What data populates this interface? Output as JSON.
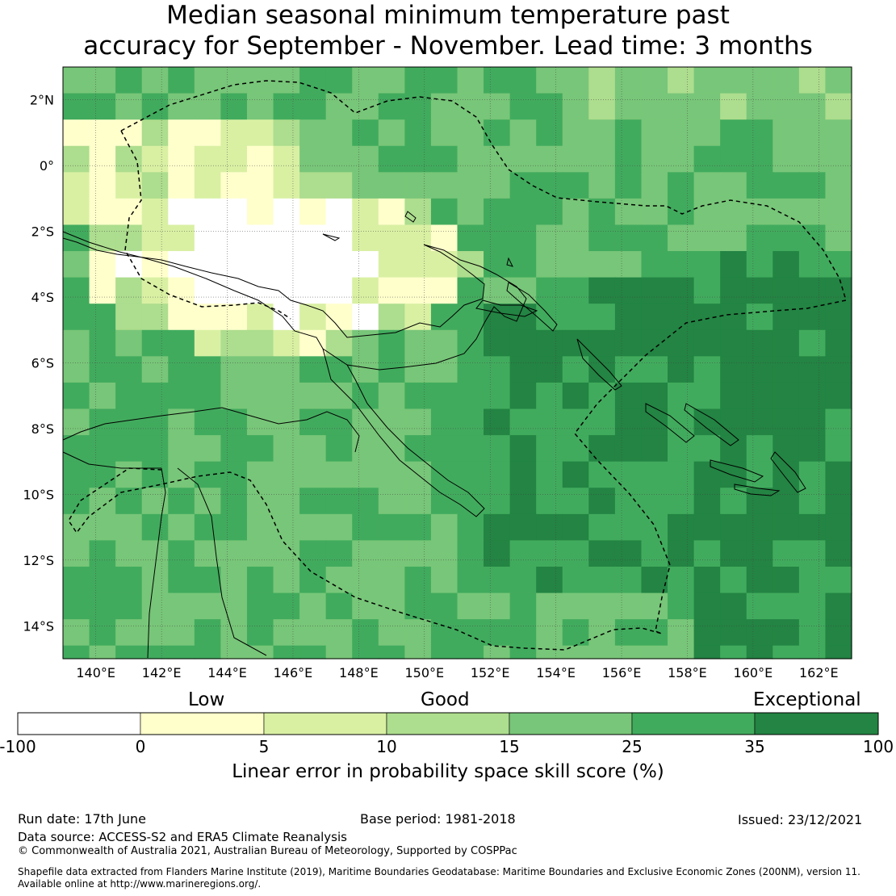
{
  "title": {
    "line1": "Median seasonal minimum temperature past",
    "line2": "accuracy for September - November. Lead time: 3 months"
  },
  "map": {
    "lon_labels": [
      "140°E",
      "142°E",
      "144°E",
      "146°E",
      "148°E",
      "150°E",
      "152°E",
      "154°E",
      "156°E",
      "158°E",
      "160°E",
      "162°E"
    ],
    "lat_labels": [
      "2°N",
      "0°",
      "2°S",
      "4°S",
      "6°S",
      "8°S",
      "10°S",
      "12°S",
      "14°S"
    ],
    "lon_range": [
      139,
      163
    ],
    "lat_range": [
      -15,
      3
    ],
    "grid_resolution_deg": 0.8
  },
  "legend": {
    "categories": [
      "Low",
      "Good",
      "Exceptional"
    ],
    "ticks": [
      "-100",
      "0",
      "5",
      "10",
      "15",
      "25",
      "35",
      "100"
    ],
    "colors": [
      "#ffffff",
      "#ffffcc",
      "#d9f0a3",
      "#addd8e",
      "#78c679",
      "#41ab5d",
      "#238443"
    ],
    "title": "Linear error in probability space skill score (%)"
  },
  "footer": {
    "run_date": "Run date: 17th June",
    "base_period": "Base period: 1981-2018",
    "issued": "Issued: 23/12/2021",
    "data_source": "Data source: ACCESS-S2 and ERA5 Climate Reanalysis",
    "copyright": "© Commonwealth of Australia 2021, Australian Bureau of Meteorology, Supported by COSPPac",
    "shapefile_line1": "Shapefile data extracted from Flanders Marine Institute (2019), Maritime Boundaries Geodatabase: Maritime Boundaries and Exclusive Economic Zones (200NM), version 11.",
    "shapefile_line2": "Available online at http://www.marineregions.org/."
  }
}
